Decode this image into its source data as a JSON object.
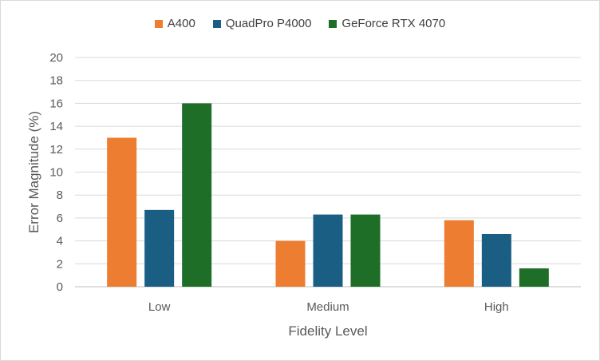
{
  "chart_data": {
    "type": "bar",
    "categories": [
      "Low",
      "Medium",
      "High"
    ],
    "series": [
      {
        "name": "A400",
        "values": [
          13,
          4,
          5.8
        ],
        "color": "#ED7D31"
      },
      {
        "name": "QuadPro P4000",
        "values": [
          6.7,
          6.3,
          4.6
        ],
        "color": "#1B5E84"
      },
      {
        "name": "GeForce RTX 4070",
        "values": [
          16,
          6.3,
          1.6
        ],
        "color": "#1E6E28"
      }
    ],
    "xlabel": "Fidelity Level",
    "ylabel": "Error Magnitude (%)",
    "ylim": [
      0,
      20
    ],
    "yticks": [
      "0",
      "2",
      "4",
      "6",
      "8",
      "10",
      "12",
      "14",
      "16",
      "18",
      "20"
    ],
    "grid": true,
    "legend_position": "top"
  }
}
